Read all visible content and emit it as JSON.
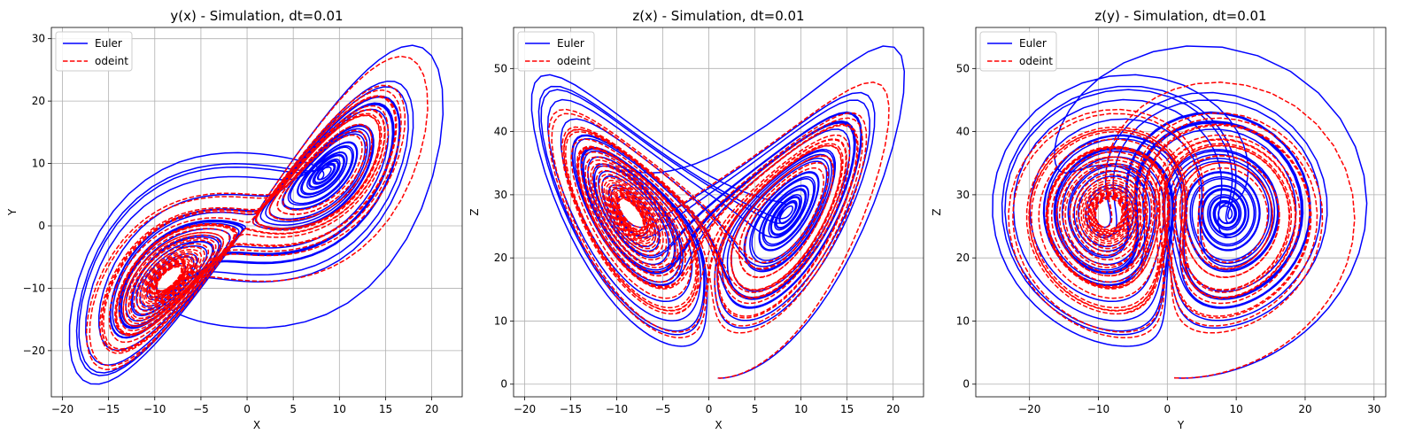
{
  "chart_data": [
    {
      "type": "line",
      "title": "y(x) - Simulation, dt=0.01",
      "xlabel": "X",
      "ylabel": "Y",
      "xlim": [
        -21.2,
        23.3
      ],
      "ylim": [
        -27.4,
        31.8
      ],
      "xticks": [
        -20,
        -15,
        -10,
        -5,
        0,
        5,
        10,
        15,
        20
      ],
      "yticks": [
        -20,
        -10,
        0,
        10,
        20,
        30
      ],
      "xtick_labels": [
        "−20",
        "−15",
        "−10",
        "−5",
        "0",
        "5",
        "10",
        "15",
        "20"
      ],
      "ytick_labels": [
        "−20",
        "−10",
        "0",
        "10",
        "20",
        "30"
      ],
      "grid": true,
      "legend_position": "upper-left",
      "projection": "xy",
      "series": [
        {
          "name": "Euler",
          "color": "#0000ff",
          "style": "solid"
        },
        {
          "name": "odeint",
          "color": "#ff0000",
          "style": "dashed"
        }
      ]
    },
    {
      "type": "line",
      "title": "z(x) - Simulation, dt=0.01",
      "xlabel": "X",
      "ylabel": "Z",
      "xlim": [
        -21.2,
        23.3
      ],
      "ylim": [
        -2.0,
        56.5
      ],
      "xticks": [
        -20,
        -15,
        -10,
        -5,
        0,
        5,
        10,
        15,
        20
      ],
      "yticks": [
        0,
        10,
        20,
        30,
        40,
        50
      ],
      "xtick_labels": [
        "−20",
        "−15",
        "−10",
        "−5",
        "0",
        "5",
        "10",
        "15",
        "20"
      ],
      "ytick_labels": [
        "0",
        "10",
        "20",
        "30",
        "40",
        "50"
      ],
      "grid": true,
      "legend_position": "upper-left",
      "projection": "xz",
      "series": [
        {
          "name": "Euler",
          "color": "#0000ff",
          "style": "solid"
        },
        {
          "name": "odeint",
          "color": "#ff0000",
          "style": "dashed"
        }
      ]
    },
    {
      "type": "line",
      "title": "z(y) - Simulation, dt=0.01",
      "xlabel": "Y",
      "ylabel": "Z",
      "xlim": [
        -27.8,
        31.7
      ],
      "ylim": [
        -2.0,
        56.5
      ],
      "xticks": [
        -20,
        -10,
        0,
        10,
        20,
        30
      ],
      "yticks": [
        0,
        10,
        20,
        30,
        40,
        50
      ],
      "xtick_labels": [
        "−20",
        "−10",
        "0",
        "10",
        "20",
        "30"
      ],
      "ytick_labels": [
        "0",
        "10",
        "20",
        "30",
        "40",
        "50"
      ],
      "grid": true,
      "legend_position": "upper-left",
      "projection": "yz",
      "series": [
        {
          "name": "Euler",
          "color": "#0000ff",
          "style": "solid"
        },
        {
          "name": "odeint",
          "color": "#ff0000",
          "style": "dashed"
        }
      ]
    }
  ]
}
